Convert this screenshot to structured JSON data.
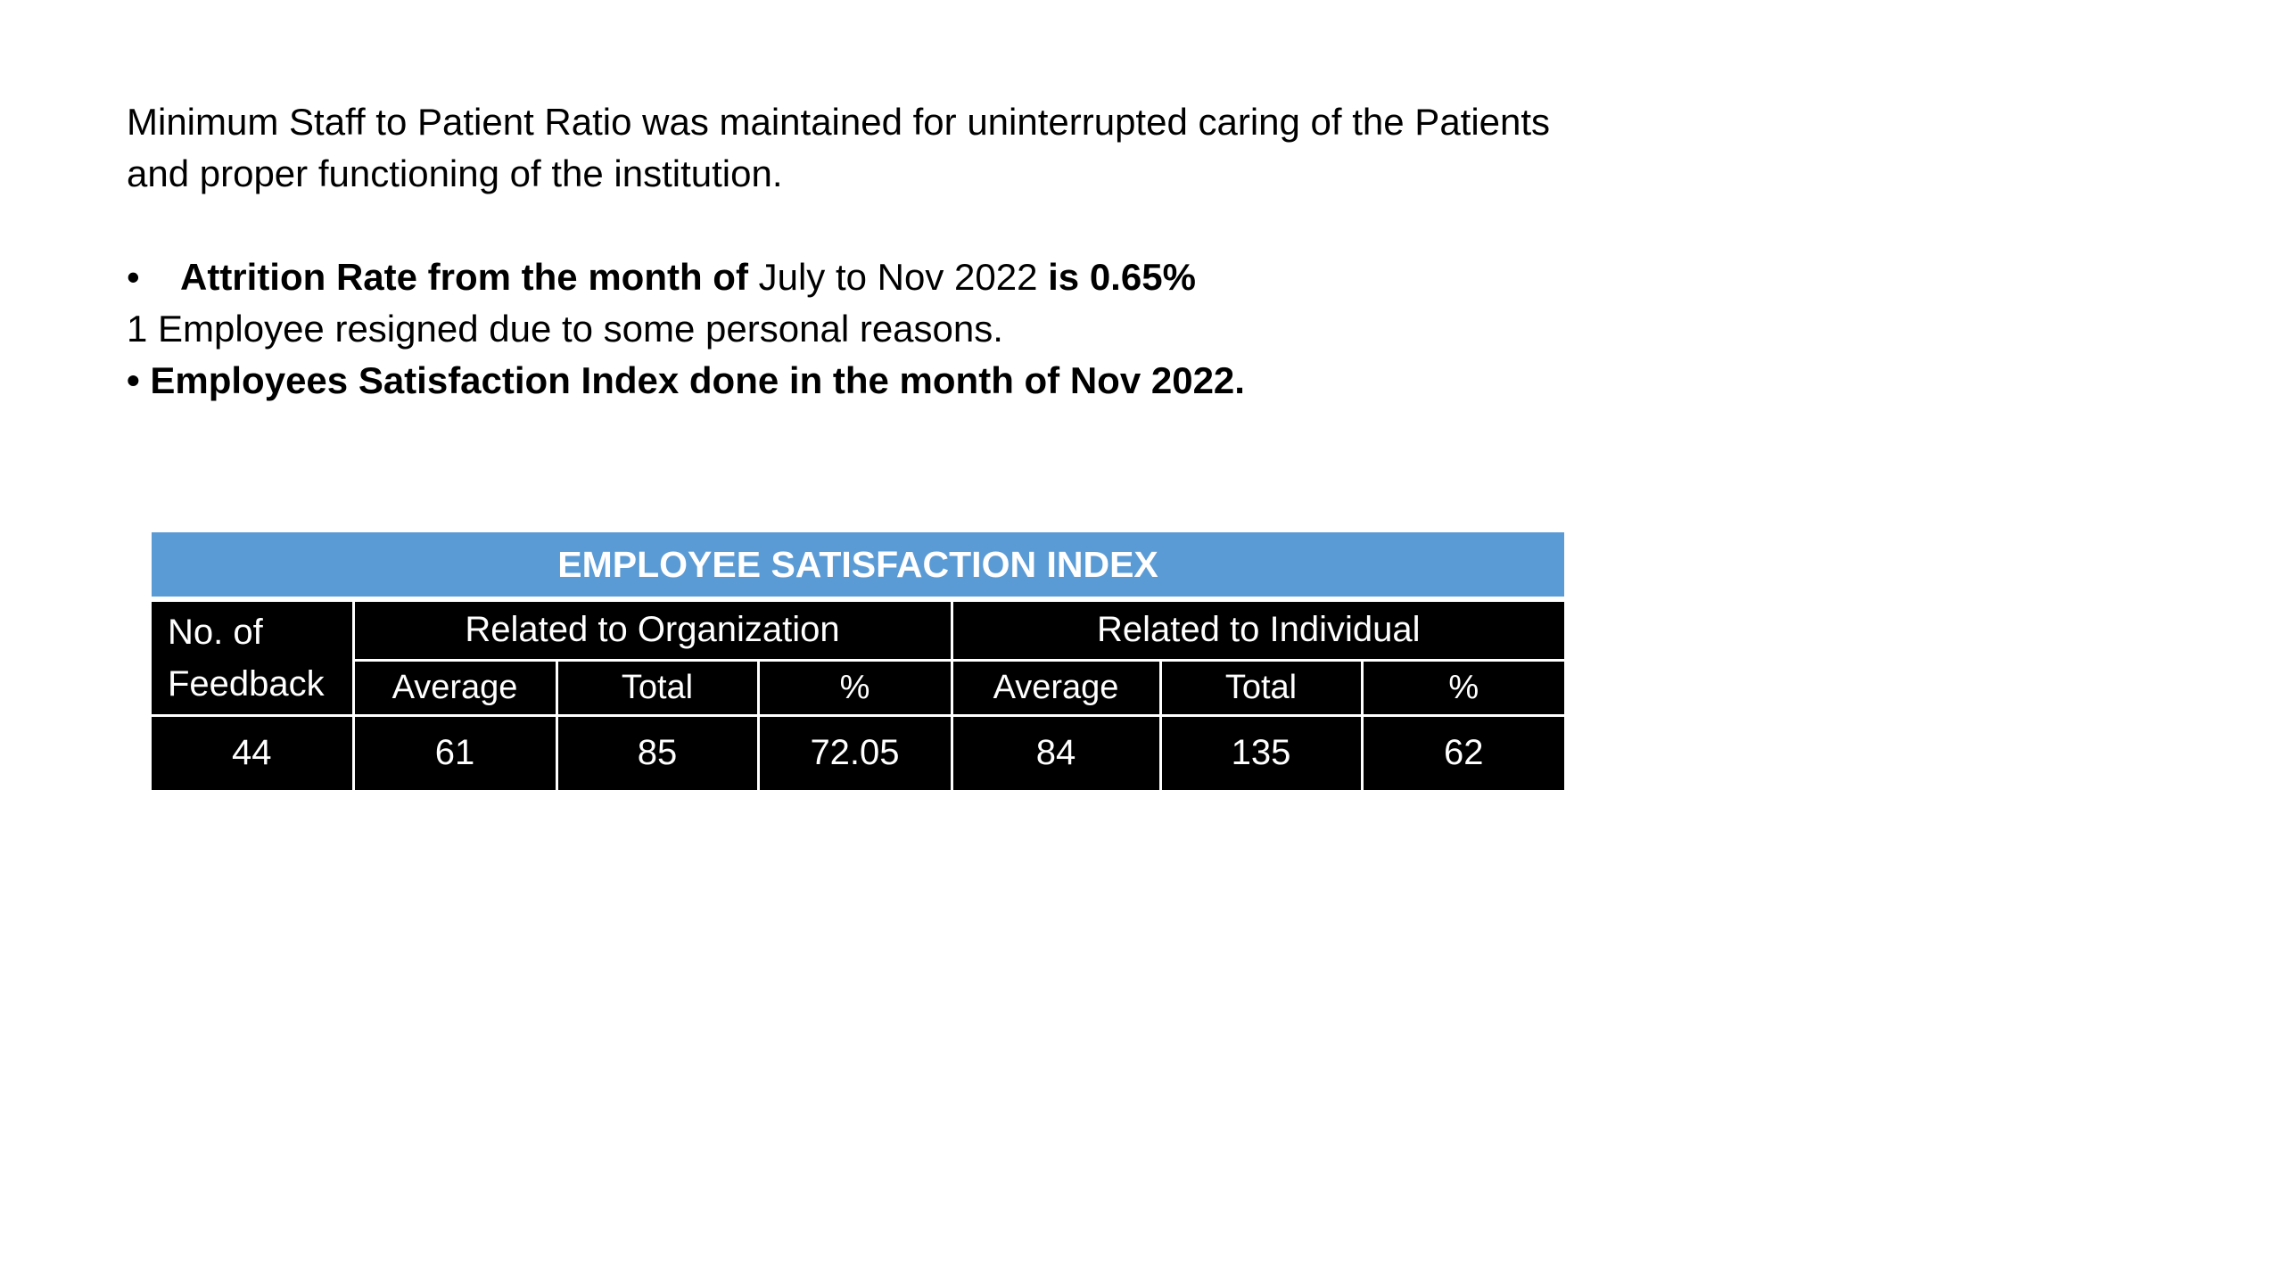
{
  "intro": {
    "line1": "Minimum Staff to Patient Ratio was maintained for uninterrupted caring of the Patients",
    "line2": "and proper functioning of the institution."
  },
  "attrition": {
    "bullet": "•",
    "bold_prefix": "Attrition Rate from the month of",
    "period": " July to Nov 2022 ",
    "bold_suffix": "is 0.65%"
  },
  "resignation_note": "1 Employee resigned due to some personal reasons.",
  "esi_note": "• Employees Satisfaction Index done in the month of Nov 2022.",
  "table": {
    "title": "EMPLOYEE SATISFACTION INDEX",
    "feedback_header_line1": "No. of",
    "feedback_header_line2": "Feedback",
    "org_header": "Related to Organization",
    "ind_header": "Related to Individual",
    "sub_headers": [
      "Average",
      "Total",
      "%",
      "Average",
      "Total",
      "%"
    ],
    "row": [
      "44",
      "61",
      "85",
      "72.05",
      "84",
      "135",
      "62"
    ]
  }
}
